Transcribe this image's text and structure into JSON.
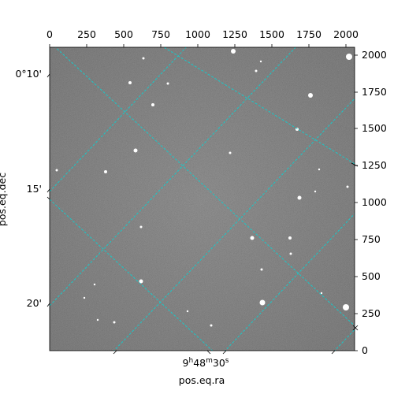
{
  "axes": {
    "xlabel": "pos.eq.ra",
    "ylabel": "pos.eq.dec",
    "pixel_x_ticks": [
      "0",
      "250",
      "500",
      "750",
      "1000",
      "1250",
      "1500",
      "1750",
      "2000"
    ],
    "pixel_y_ticks": [
      "0",
      "250",
      "500",
      "750",
      "1000",
      "1250",
      "1500",
      "1750",
      "2000"
    ],
    "dec_ticks": [
      "0°10'",
      "15'",
      "20'"
    ],
    "ra_tick": {
      "hours": "9",
      "h": "h",
      "minutes": "48",
      "m": "m",
      "seconds": "30",
      "s": "s"
    }
  },
  "image": {
    "type": "grayscale astronomical image",
    "background": "#737373",
    "grid_color": "#19c8c8"
  }
}
